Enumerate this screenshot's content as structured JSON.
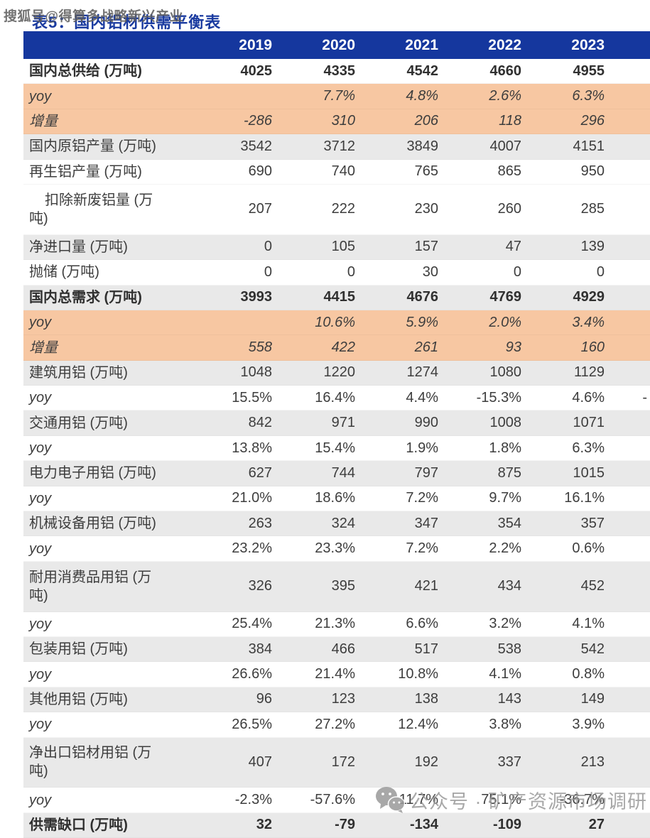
{
  "watermark_top": "搜狐号@得算多战略新兴产业",
  "title": "表5：国内铝材供需平衡表",
  "colors": {
    "header_bg": "#15379E",
    "title_text": "#1A3BA0",
    "highlight_row_bg": "#F7C7A2",
    "alt_row_bg": "#E9E9E9",
    "body_text": "#3D3D3D",
    "watermark_text": "#9A9A9A"
  },
  "watermark_bottom": {
    "icon": "wechat-icon",
    "text": "公众号 · 矿产资源市场调研"
  },
  "table": {
    "columns": [
      "2019",
      "2020",
      "2021",
      "2022",
      "2023"
    ],
    "rows": [
      {
        "label": "国内总供给 (万吨)",
        "values": [
          "4025",
          "4335",
          "4542",
          "4660",
          "4955"
        ],
        "bg": "white",
        "variant": "total"
      },
      {
        "label": "yoy",
        "values": [
          "",
          "7.7%",
          "4.8%",
          "2.6%",
          "6.3%"
        ],
        "bg": "peach",
        "variant": "pct"
      },
      {
        "label": "增量",
        "values": [
          "-286",
          "310",
          "206",
          "118",
          "296"
        ],
        "bg": "peach",
        "variant": "pct"
      },
      {
        "label": "国内原铝产量 (万吨)",
        "values": [
          "3542",
          "3712",
          "3849",
          "4007",
          "4151"
        ],
        "bg": "gray",
        "variant": "normal"
      },
      {
        "label": "再生铝产量 (万吨)",
        "values": [
          "690",
          "740",
          "765",
          "865",
          "950"
        ],
        "bg": "white",
        "variant": "normal"
      },
      {
        "label": "扣除新废铝量 (万吨)",
        "values": [
          "207",
          "222",
          "230",
          "260",
          "285"
        ],
        "bg": "white",
        "variant": "normal",
        "indent": true,
        "tall": true
      },
      {
        "label": "净进口量 (万吨)",
        "values": [
          "0",
          "105",
          "157",
          "47",
          "139"
        ],
        "bg": "gray",
        "variant": "normal"
      },
      {
        "label": "抛储 (万吨)",
        "values": [
          "0",
          "0",
          "30",
          "0",
          "0"
        ],
        "bg": "white",
        "variant": "normal"
      },
      {
        "label": "国内总需求 (万吨)",
        "values": [
          "3993",
          "4415",
          "4676",
          "4769",
          "4929"
        ],
        "bg": "gray",
        "variant": "total"
      },
      {
        "label": "yoy",
        "values": [
          "",
          "10.6%",
          "5.9%",
          "2.0%",
          "3.4%"
        ],
        "bg": "peach",
        "variant": "pct"
      },
      {
        "label": "增量",
        "values": [
          "558",
          "422",
          "261",
          "93",
          "160"
        ],
        "bg": "peach",
        "variant": "pct"
      },
      {
        "label": "建筑用铝 (万吨)",
        "values": [
          "1048",
          "1220",
          "1274",
          "1080",
          "1129"
        ],
        "bg": "gray",
        "variant": "normal"
      },
      {
        "label": "yoy",
        "values": [
          "15.5%",
          "16.4%",
          "4.4%",
          "-15.3%",
          "4.6%"
        ],
        "bg": "white",
        "variant": "yoy",
        "extra": "-"
      },
      {
        "label": "交通用铝 (万吨)",
        "values": [
          "842",
          "971",
          "990",
          "1008",
          "1071"
        ],
        "bg": "gray",
        "variant": "normal"
      },
      {
        "label": "yoy",
        "values": [
          "13.8%",
          "15.4%",
          "1.9%",
          "1.8%",
          "6.3%"
        ],
        "bg": "white",
        "variant": "yoy"
      },
      {
        "label": "电力电子用铝 (万吨)",
        "values": [
          "627",
          "744",
          "797",
          "875",
          "1015"
        ],
        "bg": "gray",
        "variant": "normal"
      },
      {
        "label": "yoy",
        "values": [
          "21.0%",
          "18.6%",
          "7.2%",
          "9.7%",
          "16.1%"
        ],
        "bg": "white",
        "variant": "yoy"
      },
      {
        "label": "机械设备用铝 (万吨)",
        "values": [
          "263",
          "324",
          "347",
          "354",
          "357"
        ],
        "bg": "gray",
        "variant": "normal"
      },
      {
        "label": "yoy",
        "values": [
          "23.2%",
          "23.3%",
          "7.2%",
          "2.2%",
          "0.6%"
        ],
        "bg": "white",
        "variant": "yoy"
      },
      {
        "label": "耐用消费品用铝 (万吨)",
        "values": [
          "326",
          "395",
          "421",
          "434",
          "452"
        ],
        "bg": "gray",
        "variant": "normal",
        "tall": true
      },
      {
        "label": "yoy",
        "values": [
          "25.4%",
          "21.3%",
          "6.6%",
          "3.2%",
          "4.1%"
        ],
        "bg": "white",
        "variant": "yoy"
      },
      {
        "label": "包装用铝 (万吨)",
        "values": [
          "384",
          "466",
          "517",
          "538",
          "542"
        ],
        "bg": "gray",
        "variant": "normal"
      },
      {
        "label": "yoy",
        "values": [
          "26.6%",
          "21.4%",
          "10.8%",
          "4.1%",
          "0.8%"
        ],
        "bg": "white",
        "variant": "yoy"
      },
      {
        "label": "其他用铝 (万吨)",
        "values": [
          "96",
          "123",
          "138",
          "143",
          "149"
        ],
        "bg": "gray",
        "variant": "normal"
      },
      {
        "label": "yoy",
        "values": [
          "26.5%",
          "27.2%",
          "12.4%",
          "3.8%",
          "3.9%"
        ],
        "bg": "white",
        "variant": "yoy"
      },
      {
        "label": "净出口铝材用铝 (万吨)",
        "values": [
          "407",
          "172",
          "192",
          "337",
          "213"
        ],
        "bg": "gray",
        "variant": "normal",
        "tall": true
      },
      {
        "label": "yoy",
        "values": [
          "-2.3%",
          "-57.6%",
          "11.7%",
          "75.1%",
          "-36.7%"
        ],
        "bg": "white",
        "variant": "yoy"
      },
      {
        "label": "供需缺口 (万吨)",
        "values": [
          "32",
          "-79",
          "-134",
          "-109",
          "27"
        ],
        "bg": "gray",
        "variant": "total"
      }
    ]
  }
}
